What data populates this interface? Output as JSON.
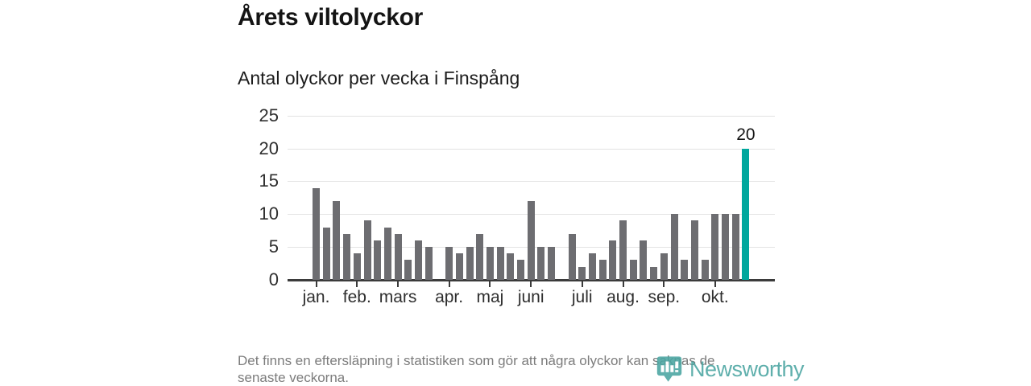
{
  "title": "Årets viltolyckor",
  "subtitle": "Antal olyckor per vecka i Finspång",
  "footer": {
    "lines": [
      "Det finns en eftersläpning i statistiken som gör att några olyckor kan saknas de",
      "senaste veckorna."
    ]
  },
  "logo": {
    "name": "Newsworthy"
  },
  "colors": {
    "bar": "#6d6d71",
    "highlight": "#00a79d",
    "grid": "#e3e3e3",
    "axis": "#3b3b3b",
    "logo_teal": "#4aa5a1",
    "footer_text": "#7c7c7c"
  },
  "chart_data": {
    "type": "bar",
    "title": "Årets viltolyckor",
    "subtitle": "Antal olyckor per vecka i Finspång",
    "x_unit": "vecka (week), jan–okt",
    "values": [
      14,
      8,
      12,
      7,
      4,
      9,
      6,
      8,
      7,
      3,
      6,
      5,
      0,
      5,
      4,
      5,
      7,
      5,
      5,
      4,
      3,
      12,
      5,
      5,
      0,
      7,
      2,
      4,
      3,
      6,
      9,
      3,
      6,
      2,
      4,
      10,
      3,
      9,
      3,
      10,
      10,
      10,
      20
    ],
    "highlight_index": 42,
    "highlight_label": "20",
    "month_ticks": [
      {
        "label": "jan.",
        "week_index": 0
      },
      {
        "label": "feb.",
        "week_index": 4
      },
      {
        "label": "mars",
        "week_index": 8
      },
      {
        "label": "apr.",
        "week_index": 13
      },
      {
        "label": "maj",
        "week_index": 17
      },
      {
        "label": "juni",
        "week_index": 21
      },
      {
        "label": "juli",
        "week_index": 26
      },
      {
        "label": "aug.",
        "week_index": 30
      },
      {
        "label": "sep.",
        "week_index": 34
      },
      {
        "label": "okt.",
        "week_index": 39
      }
    ],
    "ylabel": "",
    "xlabel": "",
    "ylim": [
      0,
      25
    ],
    "yticks": [
      0,
      5,
      10,
      15,
      20,
      25
    ],
    "grid": true,
    "legend": false
  }
}
